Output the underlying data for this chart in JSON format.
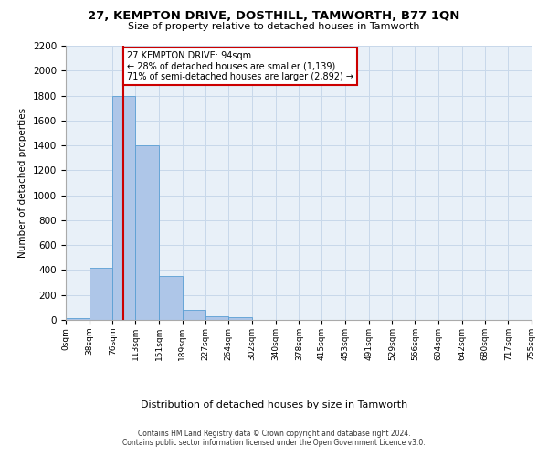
{
  "title": "27, KEMPTON DRIVE, DOSTHILL, TAMWORTH, B77 1QN",
  "subtitle": "Size of property relative to detached houses in Tamworth",
  "xlabel": "Distribution of detached houses by size in Tamworth",
  "ylabel": "Number of detached properties",
  "footer_line1": "Contains HM Land Registry data © Crown copyright and database right 2024.",
  "footer_line2": "Contains public sector information licensed under the Open Government Licence v3.0.",
  "bin_edges": [
    0,
    38,
    76,
    113,
    151,
    189,
    227,
    264,
    302,
    340,
    378,
    415,
    453,
    491,
    529,
    566,
    604,
    642,
    680,
    717,
    755
  ],
  "bar_heights": [
    15,
    420,
    1800,
    1400,
    350,
    80,
    30,
    20,
    0,
    0,
    0,
    0,
    0,
    0,
    0,
    0,
    0,
    0,
    0,
    0
  ],
  "bar_color": "#aec6e8",
  "bar_edge_color": "#5a9fd4",
  "grid_color": "#c8d8ea",
  "bg_color": "#e8f0f8",
  "property_size": 94,
  "annotation_title": "27 KEMPTON DRIVE: 94sqm",
  "annotation_line1": "← 28% of detached houses are smaller (1,139)",
  "annotation_line2": "71% of semi-detached houses are larger (2,892) →",
  "red_line_color": "#cc0000",
  "annotation_box_color": "#cc0000",
  "ylim": [
    0,
    2200
  ],
  "yticks": [
    0,
    200,
    400,
    600,
    800,
    1000,
    1200,
    1400,
    1600,
    1800,
    2000,
    2200
  ]
}
